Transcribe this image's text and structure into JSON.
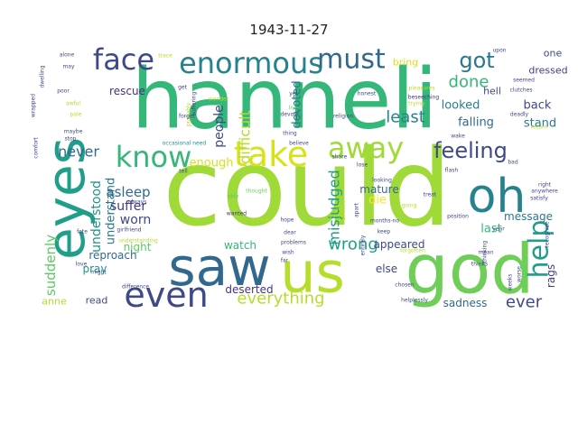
{
  "title": "1943-11-27",
  "words": [
    {
      "text": "could",
      "color": "#a0da39"
    },
    {
      "text": "hanneli",
      "color": "#35b779"
    },
    {
      "text": "god",
      "color": "#6ece58"
    },
    {
      "text": "saw",
      "color": "#31688e"
    },
    {
      "text": "us",
      "color": "#b5de2b"
    },
    {
      "text": "eyes",
      "color": "#1f9e89"
    },
    {
      "text": "oh",
      "color": "#26828e"
    },
    {
      "text": "even",
      "color": "#3e4989"
    },
    {
      "text": "take",
      "color": "#d8e219"
    },
    {
      "text": "know",
      "color": "#35b779"
    },
    {
      "text": "face",
      "color": "#3e4989"
    },
    {
      "text": "enormous",
      "color": "#26828e"
    },
    {
      "text": "must",
      "color": "#31688e"
    },
    {
      "text": "away",
      "color": "#a0da39"
    },
    {
      "text": "feeling",
      "color": "#3e4989"
    },
    {
      "text": "help",
      "color": "#1f9e89"
    },
    {
      "text": "got",
      "color": "#2a788e"
    },
    {
      "text": "done",
      "color": "#35b779"
    },
    {
      "text": "least",
      "color": "#26828e"
    },
    {
      "text": "everything",
      "color": "#b5de2b"
    },
    {
      "text": "wrong",
      "color": "#1f9e89"
    },
    {
      "text": "ever",
      "color": "#3e4989"
    },
    {
      "text": "difficult",
      "color": "#b5de2b"
    },
    {
      "text": "misjudged",
      "color": "#1f9e89"
    },
    {
      "text": "never",
      "color": "#31688e"
    },
    {
      "text": "asleep",
      "color": "#31688e"
    },
    {
      "text": "suffer",
      "color": "#443983"
    },
    {
      "text": "worn",
      "color": "#3e4989"
    },
    {
      "text": "understood",
      "color": "#21918c"
    },
    {
      "text": "understand",
      "color": "#2a788e"
    },
    {
      "text": "suddenly",
      "color": "#5ec962"
    },
    {
      "text": "devoted",
      "color": "#2a788e"
    },
    {
      "text": "people",
      "color": "#3e4989"
    },
    {
      "text": "enough",
      "color": "#d8e219"
    },
    {
      "text": "rescue",
      "color": "#46327e"
    },
    {
      "text": "looked",
      "color": "#26828e"
    },
    {
      "text": "falling",
      "color": "#31688e"
    },
    {
      "text": "back",
      "color": "#3e4989"
    },
    {
      "text": "stand",
      "color": "#2a788e"
    },
    {
      "text": "last",
      "color": "#35b779"
    },
    {
      "text": "die",
      "color": "#fde725"
    },
    {
      "text": "mature",
      "color": "#31688e"
    },
    {
      "text": "thin",
      "color": "#b5de2b"
    },
    {
      "text": "message",
      "color": "#2a788e"
    },
    {
      "text": "appeared",
      "color": "#3e4989"
    },
    {
      "text": "rags",
      "color": "#443983"
    },
    {
      "text": "else",
      "color": "#3e4989"
    },
    {
      "text": "deserted",
      "color": "#46327e"
    },
    {
      "text": "sadness",
      "color": "#31688e"
    },
    {
      "text": "watch",
      "color": "#35b779"
    },
    {
      "text": "night",
      "color": "#5ec962"
    },
    {
      "text": "reproach",
      "color": "#31688e"
    },
    {
      "text": "pray",
      "color": "#21918c"
    },
    {
      "text": "read",
      "color": "#3e4989"
    },
    {
      "text": "anne",
      "color": "#b5de2b"
    },
    {
      "text": "bring",
      "color": "#d8e219"
    },
    {
      "text": "dressed",
      "color": "#443983"
    },
    {
      "text": "one",
      "color": "#3e4989"
    },
    {
      "text": "hell",
      "color": "#3e4989"
    },
    {
      "text": "hope",
      "color": "#3e4989"
    },
    {
      "text": "wanted",
      "color": "#46327e"
    },
    {
      "text": "able",
      "color": "#5ec962"
    },
    {
      "text": "occasional need",
      "color": "#21918c"
    },
    {
      "text": "devout",
      "color": "#3e4989"
    },
    {
      "text": "thing",
      "color": "#3e4989"
    },
    {
      "text": "live",
      "color": "#5ec962"
    },
    {
      "text": "yet",
      "color": "#3e4989"
    },
    {
      "text": "honest",
      "color": "#3e4989"
    },
    {
      "text": "pleasures",
      "color": "#b5de2b"
    },
    {
      "text": "beseeching",
      "color": "#46327e"
    },
    {
      "text": "clutches",
      "color": "#3e4989"
    },
    {
      "text": "deadly",
      "color": "#3e4989"
    },
    {
      "text": "seemed",
      "color": "#3e4989"
    },
    {
      "text": "thought",
      "color": "#6ece58"
    },
    {
      "text": "looking",
      "color": "#3e4989"
    },
    {
      "text": "treat",
      "color": "#3e4989"
    },
    {
      "text": "flash",
      "color": "#3e4989"
    },
    {
      "text": "position",
      "color": "#3e4989"
    },
    {
      "text": "problems",
      "color": "#3e4989"
    },
    {
      "text": "girlfriend",
      "color": "#3e4989"
    },
    {
      "text": "difference",
      "color": "#3e4989"
    },
    {
      "text": "understanding",
      "color": "#b5de2b"
    },
    {
      "text": "chosen",
      "color": "#3e4989"
    },
    {
      "text": "forgotten",
      "color": "#b5de2b"
    },
    {
      "text": "helplessly",
      "color": "#3e4989"
    },
    {
      "text": "thinks",
      "color": "#3e4989"
    },
    {
      "text": "thinking",
      "color": "#3e4989"
    },
    {
      "text": "going",
      "color": "#b5de2b"
    },
    {
      "text": "entirely",
      "color": "#3e4989"
    },
    {
      "text": "trying",
      "color": "#b5de2b"
    },
    {
      "text": "wonder",
      "color": "#b5de2b"
    },
    {
      "text": "suffering",
      "color": "#3e4989"
    },
    {
      "text": "comfort",
      "color": "#3e4989"
    },
    {
      "text": "dwelling",
      "color": "#3e4989"
    },
    {
      "text": "wrapped",
      "color": "#3e4989"
    },
    {
      "text": "alone",
      "color": "#3e4989"
    },
    {
      "text": "may",
      "color": "#3e4989"
    },
    {
      "text": "poor",
      "color": "#3e4989"
    },
    {
      "text": "awful",
      "color": "#b5de2b"
    },
    {
      "text": "pale",
      "color": "#b5de2b"
    },
    {
      "text": "maybe",
      "color": "#3e4989"
    },
    {
      "text": "stop",
      "color": "#3e4989"
    },
    {
      "text": "fate",
      "color": "#3e4989"
    },
    {
      "text": "love",
      "color": "#3e4989"
    },
    {
      "text": "might",
      "color": "#3e4989"
    },
    {
      "text": "year",
      "color": "#3e4989"
    },
    {
      "text": "mean",
      "color": "#3e4989"
    },
    {
      "text": "recognize",
      "color": "#3e4989"
    },
    {
      "text": "right",
      "color": "#3e4989"
    },
    {
      "text": "anywhere",
      "color": "#3e4989"
    },
    {
      "text": "satisfy",
      "color": "#3e4989"
    },
    {
      "text": "merciful",
      "color": "#b5de2b"
    },
    {
      "text": "wish",
      "color": "#3e4989"
    },
    {
      "text": "dear",
      "color": "#3e4989"
    },
    {
      "text": "get",
      "color": "#3e4989"
    },
    {
      "text": "tell",
      "color": "#3e4989"
    },
    {
      "text": "probably",
      "color": "#b5de2b"
    },
    {
      "text": "forget",
      "color": "#3e4989"
    },
    {
      "text": "religion",
      "color": "#3e4989"
    },
    {
      "text": "believe",
      "color": "#3e4989"
    },
    {
      "text": "share",
      "color": "#3e4989"
    },
    {
      "text": "apart",
      "color": "#3e4989"
    },
    {
      "text": "months-no",
      "color": "#3e4989"
    },
    {
      "text": "keep",
      "color": "#3e4989"
    },
    {
      "text": "far",
      "color": "#3e4989"
    },
    {
      "text": "wake",
      "color": "#3e4989"
    },
    {
      "text": "return",
      "color": "#b5de2b"
    },
    {
      "text": "upon",
      "color": "#3e4989"
    },
    {
      "text": "lose",
      "color": "#3e4989"
    },
    {
      "text": "always",
      "color": "#3e4989"
    },
    {
      "text": "worse",
      "color": "#3e4989"
    },
    {
      "text": "weeks",
      "color": "#3e4989"
    },
    {
      "text": "bad",
      "color": "#3e4989"
    },
    {
      "text": "trace",
      "color": "#b5de2b"
    }
  ]
}
